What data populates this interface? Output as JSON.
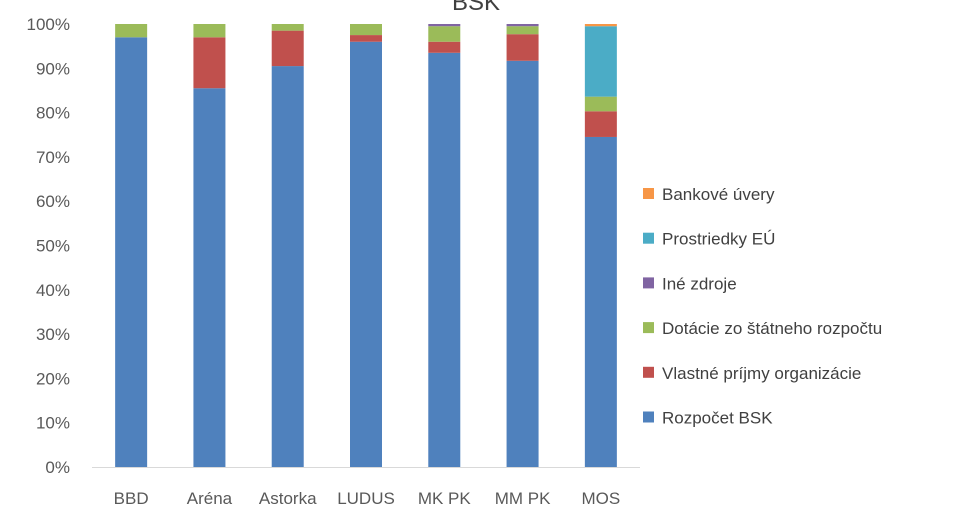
{
  "chart_data": {
    "type": "bar",
    "stacked": true,
    "percent_stacked": true,
    "title": "BSK",
    "categories": [
      "BBD",
      "Aréna",
      "Astorka",
      "LUDUS",
      "MK PK",
      "MM PK",
      "MOS"
    ],
    "y_ticks": [
      "0%",
      "10%",
      "20%",
      "30%",
      "40%",
      "50%",
      "60%",
      "70%",
      "80%",
      "90%",
      "100%"
    ],
    "ylim": [
      0,
      100
    ],
    "grid": false,
    "legend_position": "right",
    "series": [
      {
        "name": "Rozpočet BSK",
        "color": "#4f81bd",
        "values": [
          97.0,
          85.5,
          90.5,
          96.0,
          93.5,
          91.7,
          74.5
        ]
      },
      {
        "name": "Vlastné príjmy organizácie",
        "color": "#c0504d",
        "values": [
          0.0,
          11.5,
          8.0,
          1.5,
          2.5,
          6.0,
          5.8
        ]
      },
      {
        "name": "Dotácie zo štátneho rozpočtu",
        "color": "#9bbb59",
        "values": [
          3.0,
          3.0,
          1.5,
          2.5,
          3.5,
          1.8,
          3.3
        ]
      },
      {
        "name": "Iné zdroje",
        "color": "#8064a2",
        "values": [
          0.0,
          0.0,
          0.0,
          0.0,
          0.5,
          0.5,
          0.0
        ]
      },
      {
        "name": "Prostriedky EÚ",
        "color": "#4bacc6",
        "values": [
          0.0,
          0.0,
          0.0,
          0.0,
          0.0,
          0.0,
          15.9
        ]
      },
      {
        "name": "Bankové úvery",
        "color": "#f79646",
        "values": [
          0.0,
          0.0,
          0.0,
          0.0,
          0.0,
          0.0,
          0.5
        ]
      }
    ]
  }
}
